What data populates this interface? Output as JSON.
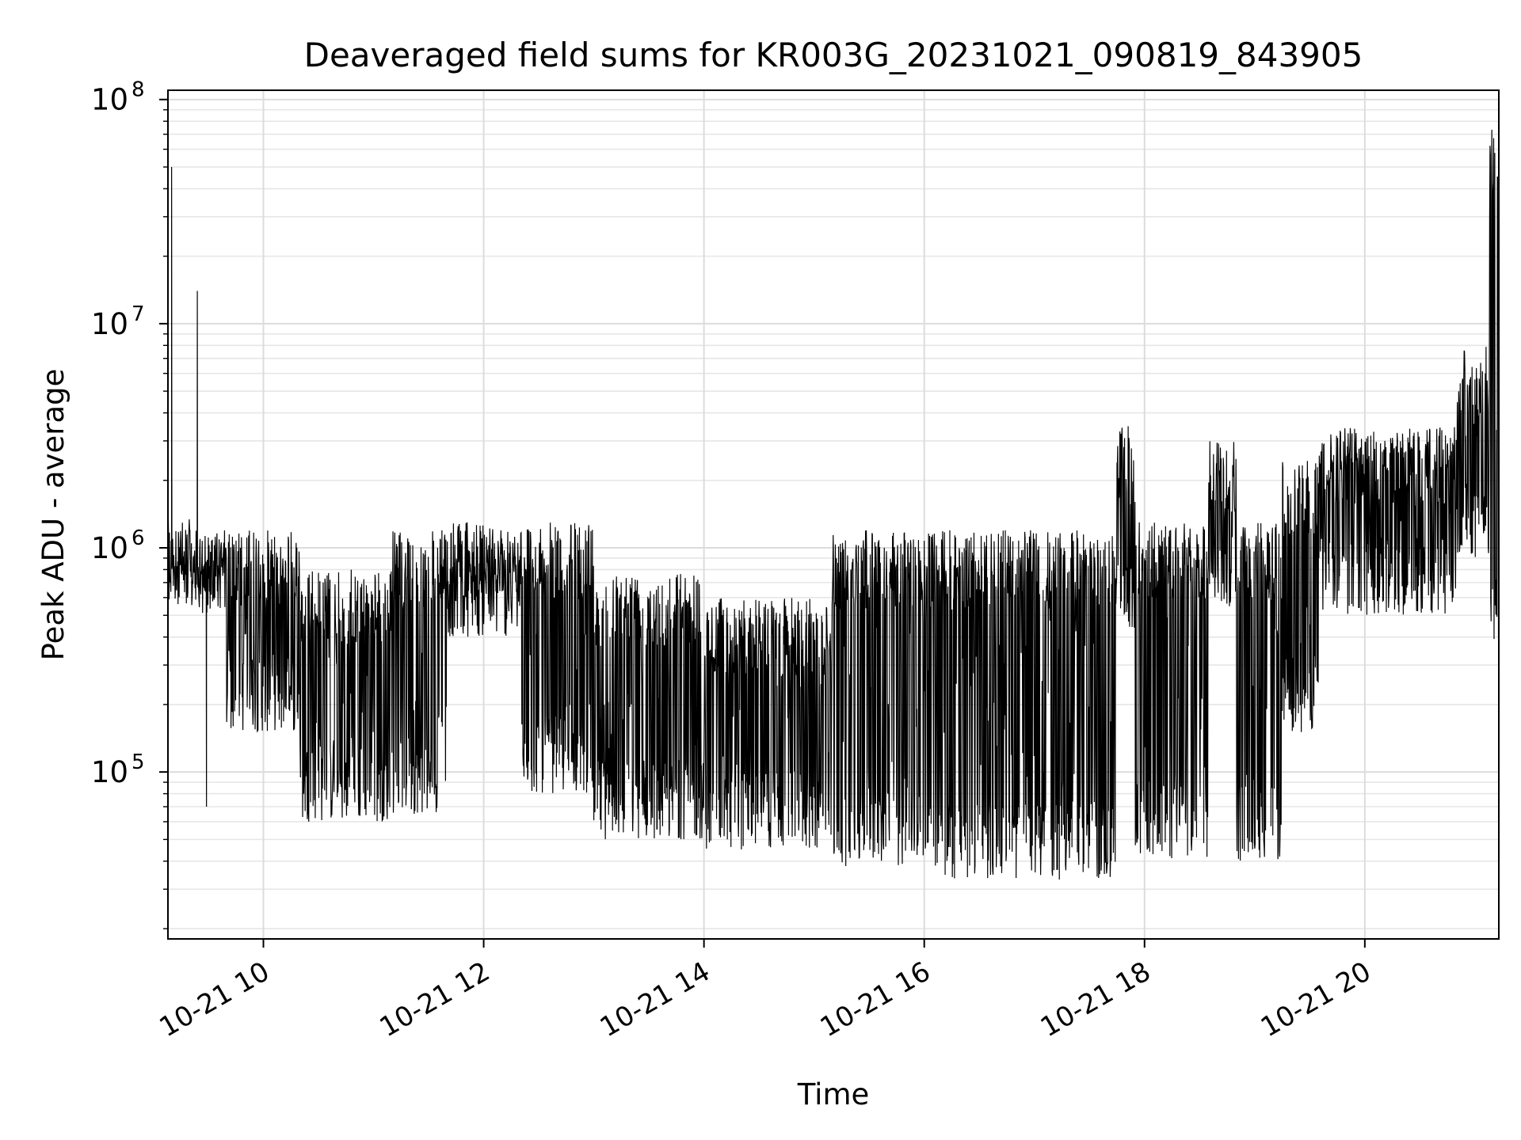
{
  "chart_data": {
    "type": "line",
    "title": "Deaveraged field sums for KR003G_20231021_090819_843905",
    "xlabel": "Time",
    "ylabel": "Peak ADU - average",
    "yscale": "log",
    "ylim": [
      18000,
      110000000
    ],
    "xlim": [
      "2023-10-21 09:08",
      "2023-10-21 21:13"
    ],
    "grid": true,
    "line_color": "#000000",
    "x_ticks": [
      {
        "value": "2023-10-21 10:00",
        "label": "10-21 10"
      },
      {
        "value": "2023-10-21 12:00",
        "label": "10-21 12"
      },
      {
        "value": "2023-10-21 14:00",
        "label": "10-21 14"
      },
      {
        "value": "2023-10-21 16:00",
        "label": "10-21 16"
      },
      {
        "value": "2023-10-21 18:00",
        "label": "10-21 18"
      },
      {
        "value": "2023-10-21 20:00",
        "label": "10-21 20"
      }
    ],
    "y_ticks": [
      {
        "value": 100000,
        "label_base": "10",
        "label_exp": "5"
      },
      {
        "value": 1000000,
        "label_base": "10",
        "label_exp": "6"
      },
      {
        "value": 10000000,
        "label_base": "10",
        "label_exp": "7"
      },
      {
        "value": 100000000,
        "label_base": "10",
        "label_exp": "8"
      }
    ],
    "segments": [
      {
        "start": "2023-10-21 09:08",
        "end": "2023-10-21 09:20",
        "high": 1200000,
        "low": 600000,
        "spikes": [
          {
            "time": "2023-10-21 09:10",
            "value": 50000000
          }
        ]
      },
      {
        "start": "2023-10-21 09:20",
        "end": "2023-10-21 09:40",
        "high": 1200000,
        "low": 500000,
        "spikes": [
          {
            "time": "2023-10-21 09:24",
            "value": 14000000
          },
          {
            "time": "2023-10-21 09:29",
            "value": 70000
          }
        ]
      },
      {
        "start": "2023-10-21 09:40",
        "end": "2023-10-21 10:20",
        "high": 1200000,
        "low": 150000
      },
      {
        "start": "2023-10-21 10:20",
        "end": "2023-10-21 11:10",
        "high": 800000,
        "low": 60000
      },
      {
        "start": "2023-10-21 11:10",
        "end": "2023-10-21 11:40",
        "high": 1200000,
        "low": 65000
      },
      {
        "start": "2023-10-21 11:40",
        "end": "2023-10-21 12:20",
        "high": 1300000,
        "low": 400000
      },
      {
        "start": "2023-10-21 12:20",
        "end": "2023-10-21 13:00",
        "high": 1300000,
        "low": 80000
      },
      {
        "start": "2023-10-21 13:00",
        "end": "2023-10-21 14:00",
        "high": 800000,
        "low": 50000
      },
      {
        "start": "2023-10-21 14:00",
        "end": "2023-10-21 15:10",
        "high": 600000,
        "low": 45000
      },
      {
        "start": "2023-10-21 15:10",
        "end": "2023-10-21 16:10",
        "high": 1200000,
        "low": 38000
      },
      {
        "start": "2023-10-21 16:10",
        "end": "2023-10-21 17:45",
        "high": 1200000,
        "low": 33000
      },
      {
        "start": "2023-10-21 17:45",
        "end": "2023-10-21 17:55",
        "high": 3500000,
        "low": 400000
      },
      {
        "start": "2023-10-21 17:55",
        "end": "2023-10-21 18:35",
        "high": 1300000,
        "low": 40000
      },
      {
        "start": "2023-10-21 18:35",
        "end": "2023-10-21 18:50",
        "high": 3000000,
        "low": 500000
      },
      {
        "start": "2023-10-21 18:50",
        "end": "2023-10-21 19:15",
        "high": 1300000,
        "low": 40000
      },
      {
        "start": "2023-10-21 19:15",
        "end": "2023-10-21 19:35",
        "high": 2500000,
        "low": 150000
      },
      {
        "start": "2023-10-21 19:35",
        "end": "2023-10-21 20:50",
        "high": 3500000,
        "low": 500000
      },
      {
        "start": "2023-10-21 20:50",
        "end": "2023-10-21 21:08",
        "high": 8000000,
        "low": 900000
      },
      {
        "start": "2023-10-21 21:08",
        "end": "2023-10-21 21:13",
        "high": 75000000,
        "low": 350000
      }
    ]
  }
}
